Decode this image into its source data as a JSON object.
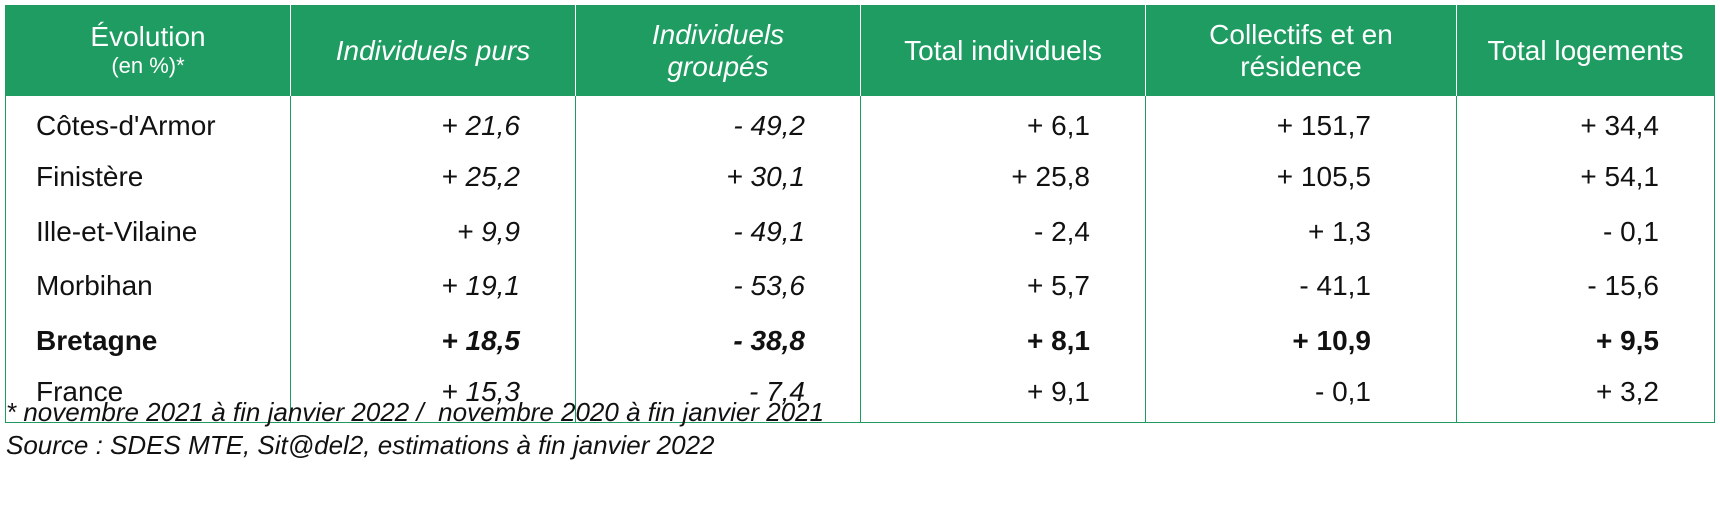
{
  "table": {
    "headers": [
      {
        "main": "Évolution",
        "sub": "(en %)*"
      },
      {
        "main": "Individuels purs",
        "sub": ""
      },
      {
        "main": "Individuels groupés",
        "sub": ""
      },
      {
        "main": "Total individuels",
        "sub": ""
      },
      {
        "main": "Collectifs et en résidence",
        "sub": ""
      },
      {
        "main": "Total logements",
        "sub": ""
      }
    ],
    "rows": [
      {
        "label": "Côtes-d'Armor",
        "values": [
          "+ 21,6",
          "- 49,2",
          "+ 6,1",
          "+ 151,7",
          "+ 34,4"
        ],
        "bold": false
      },
      {
        "label": "Finistère",
        "values": [
          "+ 25,2",
          "+ 30,1",
          "+ 25,8",
          "+ 105,5",
          "+ 54,1"
        ],
        "bold": false
      },
      {
        "label": "Ille-et-Vilaine",
        "values": [
          "+ 9,9",
          "- 49,1",
          "- 2,4",
          "+ 1,3",
          "- 0,1"
        ],
        "bold": false
      },
      {
        "label": "Morbihan",
        "values": [
          "+ 19,1",
          "- 53,6",
          "+ 5,7",
          "- 41,1",
          "- 15,6"
        ],
        "bold": false
      },
      {
        "label": "Bretagne",
        "values": [
          "+ 18,5",
          "- 38,8",
          "+ 8,1",
          "+ 10,9",
          "+ 9,5"
        ],
        "bold": true
      },
      {
        "label": "France",
        "values": [
          "+ 15,3",
          "- 7,4",
          "+ 9,1",
          "- 0,1",
          "+ 3,2"
        ],
        "bold": false
      }
    ]
  },
  "notes": {
    "period": "* novembre 2021 à fin janvier 2022 /  novembre 2020 à fin janvier 2021",
    "source": "Source : SDES MTE, Sit@del2, estimations à fin janvier 2022"
  },
  "colors": {
    "header_bg": "#1e9c61",
    "header_text": "#ffffff",
    "border": "#1f9b5f"
  }
}
